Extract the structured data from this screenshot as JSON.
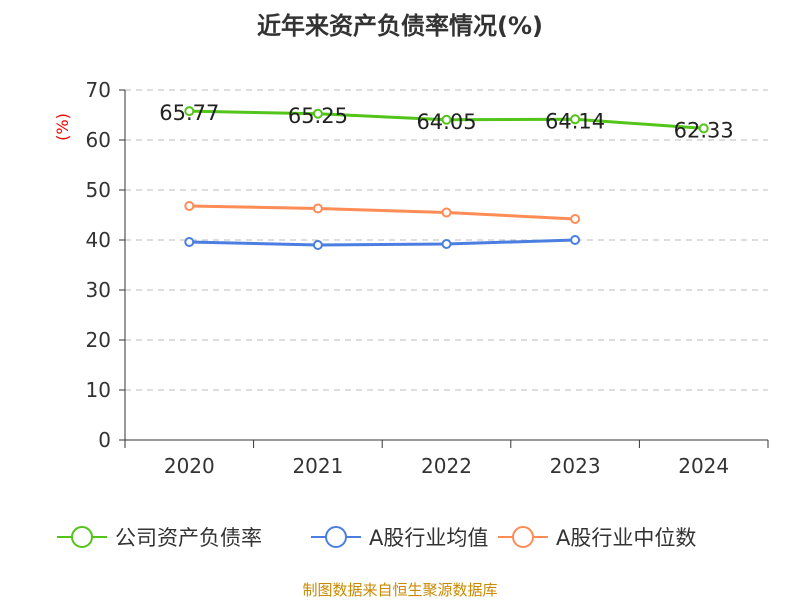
{
  "chart_data": {
    "type": "line",
    "title": "近年来资产负债率情况(%)",
    "ylabel": "(%)",
    "xlabel": "",
    "categories": [
      "2020",
      "2021",
      "2022",
      "2023",
      "2024"
    ],
    "ylim": [
      0,
      70
    ],
    "yticks": [
      0,
      10,
      20,
      30,
      40,
      50,
      60,
      70
    ],
    "grid": true,
    "legend_position": "bottom",
    "series": [
      {
        "name": "公司资产负债率",
        "color": "#52c41a",
        "values": [
          65.77,
          65.25,
          64.05,
          64.14,
          62.33
        ],
        "labels": [
          "65.77",
          "65.25",
          "64.05",
          "64.14",
          "62.33"
        ]
      },
      {
        "name": "A股行业均值",
        "color": "#4a7ee0",
        "values": [
          39.6,
          39.0,
          39.2,
          40.0,
          null
        ]
      },
      {
        "name": "A股行业中位数",
        "color": "#ff8c55",
        "values": [
          46.8,
          46.3,
          45.5,
          44.2,
          null
        ]
      }
    ]
  },
  "source": "制图数据来自恒生聚源数据库"
}
